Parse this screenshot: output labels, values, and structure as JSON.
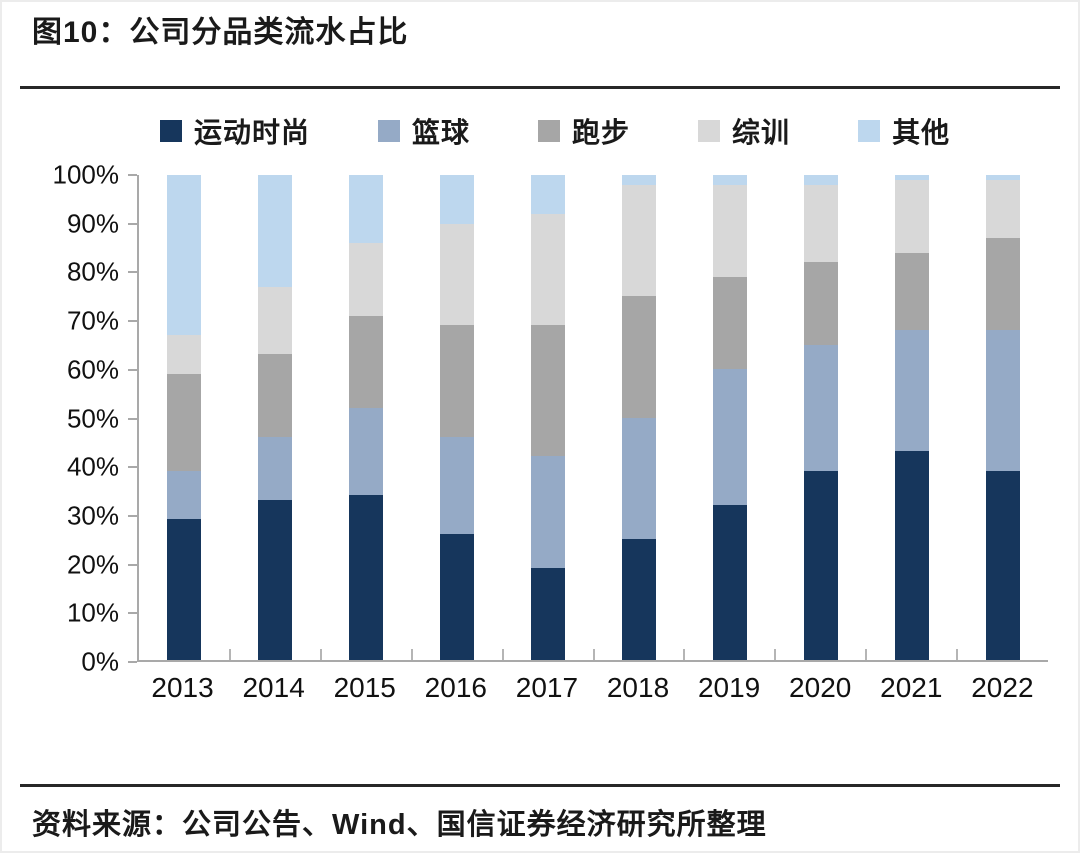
{
  "header": {
    "title": "图10：公司分品类流水占比"
  },
  "footer": {
    "source": "资料来源：公司公告、Wind、国信证券经济研究所整理"
  },
  "colors": {
    "sports_fashion": "#16365c",
    "basketball": "#95aac6",
    "running": "#a6a6a6",
    "training": "#d8d8d8",
    "other": "#bdd7ee",
    "axis": "#a9a9a9",
    "text": "#1a1a1a"
  },
  "chart_data": {
    "type": "bar",
    "stacked": true,
    "title": "图10：公司分品类流水占比",
    "xlabel": "",
    "ylabel": "",
    "ylim": [
      0,
      100
    ],
    "grid": false,
    "legend_position": "top",
    "y_tick_labels": [
      "100%",
      "90%",
      "80%",
      "70%",
      "60%",
      "50%",
      "40%",
      "30%",
      "20%",
      "10%",
      "0%"
    ],
    "categories": [
      "2013",
      "2014",
      "2015",
      "2016",
      "2017",
      "2018",
      "2019",
      "2020",
      "2021",
      "2022"
    ],
    "series": [
      {
        "name": "运动时尚",
        "color": "#16365c",
        "values": [
          29,
          33,
          34,
          26,
          19,
          25,
          32,
          39,
          43,
          39
        ]
      },
      {
        "name": "篮球",
        "color": "#95aac6",
        "values": [
          10,
          13,
          18,
          20,
          23,
          25,
          28,
          26,
          25,
          29
        ]
      },
      {
        "name": "跑步",
        "color": "#a6a6a6",
        "values": [
          20,
          17,
          19,
          23,
          27,
          25,
          19,
          17,
          16,
          19
        ]
      },
      {
        "name": "综训",
        "color": "#d8d8d8",
        "values": [
          8,
          14,
          15,
          21,
          23,
          23,
          19,
          16,
          15,
          12
        ]
      },
      {
        "name": "其他",
        "color": "#bdd7ee",
        "values": [
          33,
          23,
          14,
          10,
          8,
          2,
          2,
          2,
          1,
          1
        ]
      }
    ]
  }
}
